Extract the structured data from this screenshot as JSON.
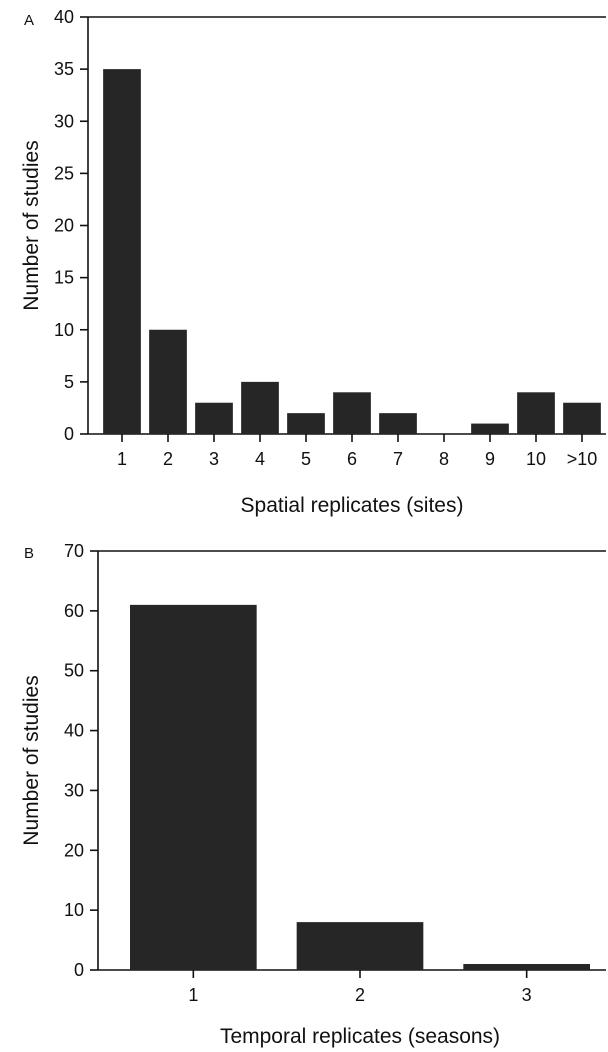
{
  "chart_data": [
    {
      "type": "bar",
      "panel_label": "A",
      "categories": [
        "1",
        "2",
        "3",
        "4",
        "5",
        "6",
        "7",
        "8",
        "9",
        "10",
        ">10"
      ],
      "values": [
        35,
        10,
        3,
        5,
        2,
        4,
        2,
        0,
        1,
        4,
        3
      ],
      "xlabel": "Spatial replicates (sites)",
      "ylabel": "Number of studies",
      "ylim": [
        0,
        40
      ],
      "yticks": [
        0,
        5,
        10,
        15,
        20,
        25,
        30,
        35,
        40
      ],
      "bar_color": "#262626",
      "grid": false,
      "legend": "none"
    },
    {
      "type": "bar",
      "panel_label": "B",
      "categories": [
        "1",
        "2",
        "3"
      ],
      "values": [
        61,
        8,
        1
      ],
      "xlabel": "Temporal replicates (seasons)",
      "ylabel": "Number of studies",
      "ylim": [
        0,
        70
      ],
      "yticks": [
        0,
        10,
        20,
        30,
        40,
        50,
        60,
        70
      ],
      "bar_color": "#262626",
      "grid": false,
      "legend": "none"
    }
  ]
}
